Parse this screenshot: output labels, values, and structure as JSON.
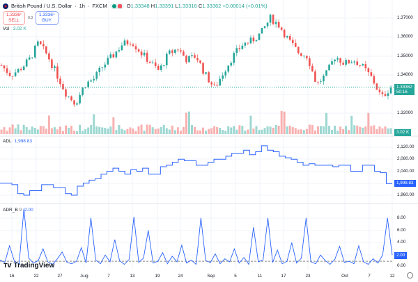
{
  "header": {
    "symbol": "British Pound / U.S. Dollar",
    "interval": "1h",
    "exchange": "FXCM",
    "separator1": " · ",
    "separator2": " · ",
    "o_label": "O",
    "open": "1.33348",
    "h_label": "H",
    "high": "1.33391",
    "l_label": "L",
    "low": "1.33316",
    "c_label": "C",
    "close": "1.33362",
    "change": "+0.00014 (+0.01%)"
  },
  "trade": {
    "sell_price": "1.3336¹",
    "sell_label": "SELL",
    "spread": "0.3",
    "buy_price": "1.3336⁴",
    "buy_label": "BUY"
  },
  "volume": {
    "label": "Vol",
    "value": "3.02 K",
    "tag": "3.02 K"
  },
  "adl": {
    "label": "ADL",
    "value": "1,998.83",
    "tag": "1,998.83"
  },
  "adr": {
    "label": "ADR_B",
    "param": "9",
    "value": "2.00",
    "tag": "2.00"
  },
  "price_tag": {
    "price": "1.33362",
    "countdown": "50:16"
  },
  "brand": "TradingView",
  "colors": {
    "up": "#26a69a",
    "down": "#ef5350",
    "line": "#2962ff",
    "grid": "#f0f3fa"
  },
  "chart_data": [
    {
      "type": "candlestick",
      "title": "British Pound / U.S. Dollar · 1h · FXCM",
      "yticks": [
        "1.37000",
        "1.36000",
        "1.35000",
        "1.34000",
        "1.32000"
      ],
      "ylim": [
        1.3165,
        1.3765
      ],
      "xticks": [
        "16",
        "22",
        "27",
        "Aug",
        "7",
        "13",
        "19",
        "24",
        "Sep",
        "5",
        "11",
        "17",
        "23",
        "Oct",
        "7",
        "12"
      ],
      "close_path": [
        1.345,
        1.34,
        1.343,
        1.348,
        1.357,
        1.35,
        1.34,
        1.33,
        1.325,
        1.335,
        1.338,
        1.345,
        1.35,
        1.356,
        1.358,
        1.352,
        1.347,
        1.342,
        1.351,
        1.354,
        1.348,
        1.35,
        1.34,
        1.333,
        1.342,
        1.35,
        1.356,
        1.358,
        1.362,
        1.37,
        1.366,
        1.358,
        1.352,
        1.35,
        1.335,
        1.34,
        1.35,
        1.346,
        1.348,
        1.344,
        1.338,
        1.328,
        1.33362
      ]
    },
    {
      "type": "line",
      "name": "ADL",
      "yticks": [
        "2,120.00",
        "2,080.00",
        "2,040.00",
        "1,960.00"
      ],
      "ylim": [
        1945,
        2135
      ],
      "values": [
        2000,
        2000,
        1995,
        1965,
        1960,
        1975,
        1975,
        1995,
        1995,
        1985,
        1985,
        1965,
        1960,
        1990,
        2000,
        2010,
        2015,
        2030,
        2040,
        2050,
        2040,
        2030,
        2045,
        2040,
        2050,
        2030,
        2030,
        2055,
        2060,
        2070,
        2080,
        2075,
        2075,
        2060,
        2060,
        2070,
        2080,
        2080,
        2090,
        2100,
        2100,
        2110,
        2095,
        2105,
        2125,
        2110,
        2105,
        2090,
        2085,
        2080,
        2070,
        2060,
        2065,
        2060,
        2060,
        2060,
        2055,
        2060,
        2060,
        2040,
        2040,
        2060,
        2060,
        2040,
        2035,
        1998.83
      ]
    },
    {
      "type": "line",
      "name": "ADR_B",
      "yticks": [
        "8.00",
        "6.00",
        "4.00",
        "0.00"
      ],
      "ylim": [
        0,
        10
      ],
      "reference": 1.0,
      "values": [
        1.2,
        0.8,
        3.5,
        1.0,
        0.6,
        9.5,
        1.5,
        0.7,
        1.1,
        3.0,
        0.9,
        0.5,
        1.4,
        2.5,
        0.8,
        0.6,
        1.0,
        3.2,
        0.7,
        8.0,
        1.2,
        0.6,
        2.0,
        0.9,
        4.5,
        1.1,
        0.5,
        1.3,
        8.2,
        0.8,
        1.5,
        6.0,
        0.7,
        1.0,
        2.4,
        0.6,
        1.8,
        0.9,
        3.6,
        0.7,
        1.2,
        0.5,
        8.0,
        1.1,
        0.8,
        2.2,
        0.6,
        1.4,
        0.9,
        3.0,
        0.7,
        1.6,
        0.5,
        6.5,
        0.9,
        1.2,
        8.0,
        0.8,
        2.8,
        0.6,
        1.0,
        4.0,
        0.7,
        1.5,
        8.0,
        0.9,
        0.6,
        2.0,
        1.1,
        0.5,
        1.3,
        3.4,
        0.8,
        1.0,
        0.6,
        3.5,
        0.9,
        0.5,
        1.4,
        0.7,
        2.0,
        8.0,
        2.0
      ]
    }
  ]
}
